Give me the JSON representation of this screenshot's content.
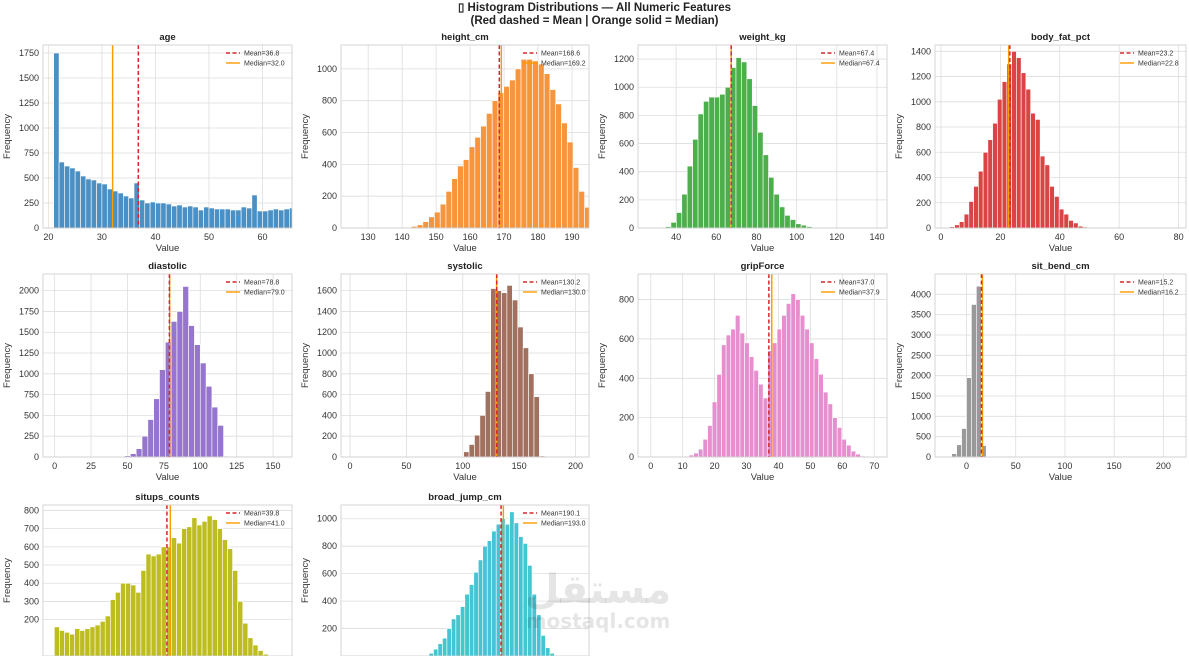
{
  "figure": {
    "title_line1": "▯ Histogram Distributions — All Numeric Features",
    "title_line2": "(Red dashed = Mean | Orange solid = Median)",
    "watermark_ar": "مستقل",
    "watermark_en": "mostaql.com"
  },
  "colors": {
    "mean": "#d62728",
    "median": "#ff9900",
    "grid": "#dddddd",
    "frame": "#cccccc"
  },
  "chart_data": [
    {
      "type": "bar",
      "title": "age",
      "xlabel": "Value",
      "ylabel": "Frequency",
      "color": "#4a90c4",
      "grid": true,
      "legend": "top-right",
      "xlim": [
        19,
        65.5
      ],
      "ylim": [
        0,
        1830
      ],
      "xticks": [
        20,
        30,
        40,
        50,
        60
      ],
      "yticks": [
        0,
        250,
        500,
        750,
        1000,
        1250,
        1500,
        1750
      ],
      "bin_start": 21,
      "bin_width": 1.0,
      "values": [
        1750,
        660,
        620,
        600,
        570,
        520,
        490,
        480,
        450,
        440,
        390,
        370,
        350,
        320,
        300,
        450,
        280,
        250,
        260,
        250,
        250,
        240,
        220,
        230,
        210,
        220,
        210,
        180,
        210,
        200,
        190,
        190,
        190,
        180,
        180,
        210,
        200,
        330,
        170,
        170,
        180,
        190,
        180,
        190,
        200,
        240,
        320,
        250,
        270,
        440
      ],
      "mean": 36.8,
      "median": 32.0,
      "mean_label": "Mean=36.8",
      "median_label": "Median=32.0"
    },
    {
      "type": "bar",
      "title": "height_cm",
      "xlabel": "Value",
      "ylabel": "Frequency",
      "color": "#f7953d",
      "grid": true,
      "legend": "top-right",
      "xlim": [
        122,
        195
      ],
      "ylim": [
        0,
        1150
      ],
      "xticks": [
        130,
        140,
        150,
        160,
        170,
        180,
        190
      ],
      "yticks": [
        0,
        200,
        400,
        600,
        800,
        1000
      ],
      "bin_start": 141,
      "bin_width": 1.7,
      "values": [
        5,
        10,
        20,
        40,
        70,
        100,
        150,
        230,
        310,
        390,
        430,
        510,
        570,
        640,
        720,
        800,
        850,
        890,
        930,
        1000,
        1060,
        1060,
        1050,
        1030,
        970,
        870,
        780,
        660,
        540,
        380,
        230,
        130,
        50,
        20,
        5
      ],
      "mean": 168.6,
      "median": 169.2,
      "mean_label": "Mean=168.6",
      "median_label": "Median=169.2"
    },
    {
      "type": "bar",
      "title": "weight_kg",
      "xlabel": "Value",
      "ylabel": "Frequency",
      "color": "#4caf4c",
      "grid": true,
      "legend": "top-right",
      "xlim": [
        21,
        145
      ],
      "ylim": [
        0,
        1300
      ],
      "xticks": [
        40,
        60,
        80,
        100,
        120,
        140
      ],
      "yticks": [
        0,
        200,
        400,
        600,
        800,
        1000,
        1200
      ],
      "bin_start": 32,
      "bin_width": 2.7,
      "values": [
        5,
        10,
        40,
        110,
        240,
        440,
        630,
        810,
        900,
        930,
        930,
        950,
        1000,
        1140,
        1210,
        1180,
        1060,
        870,
        680,
        520,
        360,
        240,
        150,
        90,
        60,
        30,
        20,
        10,
        5,
        3
      ],
      "mean": 67.4,
      "median": 67.4,
      "mean_label": "Mean=67.4",
      "median_label": "Median=67.4"
    },
    {
      "type": "bar",
      "title": "body_fat_pct",
      "xlabel": "Value",
      "ylabel": "Frequency",
      "color": "#d94444",
      "grid": true,
      "legend": "top-right",
      "xlim": [
        -2,
        82.5
      ],
      "ylim": [
        0,
        1450
      ],
      "xticks": [
        0,
        20,
        40,
        60,
        80
      ],
      "yticks": [
        0,
        200,
        400,
        600,
        800,
        1000,
        1200,
        1400
      ],
      "bin_start": 3,
      "bin_width": 1.6,
      "values": [
        10,
        25,
        50,
        110,
        210,
        330,
        450,
        600,
        700,
        830,
        1020,
        1160,
        1300,
        1400,
        1350,
        1230,
        1100,
        910,
        860,
        570,
        500,
        330,
        250,
        150,
        110,
        60,
        40,
        15,
        8,
        3
      ],
      "mean": 23.2,
      "median": 22.8,
      "mean_label": "Mean=23.2",
      "median_label": "Median=22.8"
    },
    {
      "type": "bar",
      "title": "diastolic",
      "xlabel": "Value",
      "ylabel": "Frequency",
      "color": "#9575cd",
      "grid": true,
      "legend": "top-right",
      "xlim": [
        -8,
        163
      ],
      "ylim": [
        0,
        2200
      ],
      "xticks": [
        0,
        25,
        50,
        75,
        100,
        125,
        150
      ],
      "yticks": [
        0,
        250,
        500,
        750,
        1000,
        1250,
        1500,
        1750,
        2000
      ],
      "bin_start": 44,
      "bin_width": 4.0,
      "values": [
        5,
        15,
        40,
        100,
        250,
        450,
        700,
        1050,
        1380,
        1630,
        1750,
        2050,
        1580,
        1350,
        1130,
        850,
        600,
        380,
        10,
        5
      ],
      "mean": 78.8,
      "median": 79.0,
      "mean_label": "Mean=78.8",
      "median_label": "Median=79.0"
    },
    {
      "type": "bar",
      "title": "systolic",
      "xlabel": "Value",
      "ylabel": "Frequency",
      "color": "#a1705f",
      "grid": true,
      "legend": "top-right",
      "xlim": [
        -8,
        212
      ],
      "ylim": [
        0,
        1760
      ],
      "xticks": [
        0,
        50,
        100,
        150,
        200
      ],
      "yticks": [
        0,
        200,
        400,
        600,
        800,
        1000,
        1200,
        1400,
        1600
      ],
      "bin_start": 96,
      "bin_width": 4.8,
      "values": [
        5,
        50,
        120,
        210,
        400,
        630,
        1620,
        1600,
        1580,
        1650,
        1510,
        1250,
        1050,
        800,
        580,
        10
      ],
      "mean": 130.2,
      "median": 130.0,
      "mean_label": "Mean=130.2",
      "median_label": "Median=130.0"
    },
    {
      "type": "bar",
      "title": "gripForce",
      "xlabel": "Value",
      "ylabel": "Frequency",
      "color": "#e78ecf",
      "grid": true,
      "legend": "top-right",
      "xlim": [
        -4,
        74
      ],
      "ylim": [
        0,
        930
      ],
      "xticks": [
        0,
        10,
        20,
        30,
        40,
        50,
        60,
        70
      ],
      "yticks": [
        0,
        200,
        400,
        600,
        800
      ],
      "bin_start": 12,
      "bin_width": 1.45,
      "values": [
        10,
        20,
        40,
        90,
        160,
        280,
        420,
        570,
        620,
        650,
        720,
        630,
        580,
        510,
        440,
        370,
        300,
        540,
        580,
        650,
        720,
        780,
        830,
        800,
        720,
        650,
        580,
        500,
        420,
        330,
        270,
        200,
        150,
        90,
        60,
        30,
        15,
        5,
        3,
        2
      ],
      "mean": 37.0,
      "median": 37.9,
      "mean_label": "Mean=37.0",
      "median_label": "Median=37.9"
    },
    {
      "type": "bar",
      "title": "sit_bend_cm",
      "xlabel": "Value",
      "ylabel": "Frequency",
      "color": "#999999",
      "grid": true,
      "legend": "top-right",
      "xlim": [
        -32,
        223
      ],
      "ylim": [
        0,
        4500
      ],
      "xticks": [
        0,
        50,
        100,
        150,
        200
      ],
      "yticks": [
        0,
        500,
        1000,
        1500,
        2000,
        2500,
        3000,
        3500,
        4000
      ],
      "bin_start": -20,
      "bin_width": 5.0,
      "values": [
        10,
        80,
        300,
        700,
        1950,
        3750,
        4200,
        280,
        10
      ],
      "mean": 15.2,
      "median": 16.2,
      "mean_label": "Mean=15.2",
      "median_label": "Median=16.2"
    },
    {
      "type": "bar",
      "title": "situps_counts",
      "xlabel": "Value",
      "ylabel": "Frequency",
      "color": "#bdbd22",
      "grid": true,
      "legend": "top-right",
      "xlim": [
        -4,
        84
      ],
      "ylim": [
        0,
        830
      ],
      "xticks": [],
      "yticks": [
        200,
        300,
        400,
        500,
        600,
        700,
        800
      ],
      "bin_start": 0,
      "bin_width": 1.8,
      "values": [
        160,
        140,
        130,
        120,
        150,
        140,
        150,
        160,
        170,
        190,
        220,
        310,
        350,
        400,
        400,
        390,
        350,
        470,
        560,
        550,
        560,
        600,
        600,
        650,
        620,
        700,
        710,
        760,
        720,
        740,
        770,
        750,
        700,
        640,
        590,
        470,
        300,
        180,
        100,
        60,
        30,
        10
      ],
      "mean": 39.8,
      "median": 41.0,
      "mean_label": "Mean=39.8",
      "median_label": "Median=41.0"
    },
    {
      "type": "bar",
      "title": "broad_jump_cm",
      "xlabel": "Value",
      "ylabel": "Frequency",
      "color": "#45c4d2",
      "grid": true,
      "legend": "top-right",
      "xlim": [
        -10,
        300
      ],
      "ylim": [
        0,
        1100
      ],
      "xticks": [],
      "yticks": [
        200,
        400,
        600,
        800,
        1000
      ],
      "bin_start": 100,
      "bin_width": 5.6,
      "values": [
        20,
        50,
        90,
        130,
        200,
        270,
        300,
        360,
        450,
        520,
        610,
        700,
        800,
        840,
        910,
        960,
        1000,
        960,
        1050,
        970,
        870,
        820,
        660,
        450,
        300,
        150,
        60,
        20
      ],
      "mean": 190.1,
      "median": 193.0,
      "mean_label": "Mean=190.1",
      "median_label": "Median=193.0"
    }
  ]
}
